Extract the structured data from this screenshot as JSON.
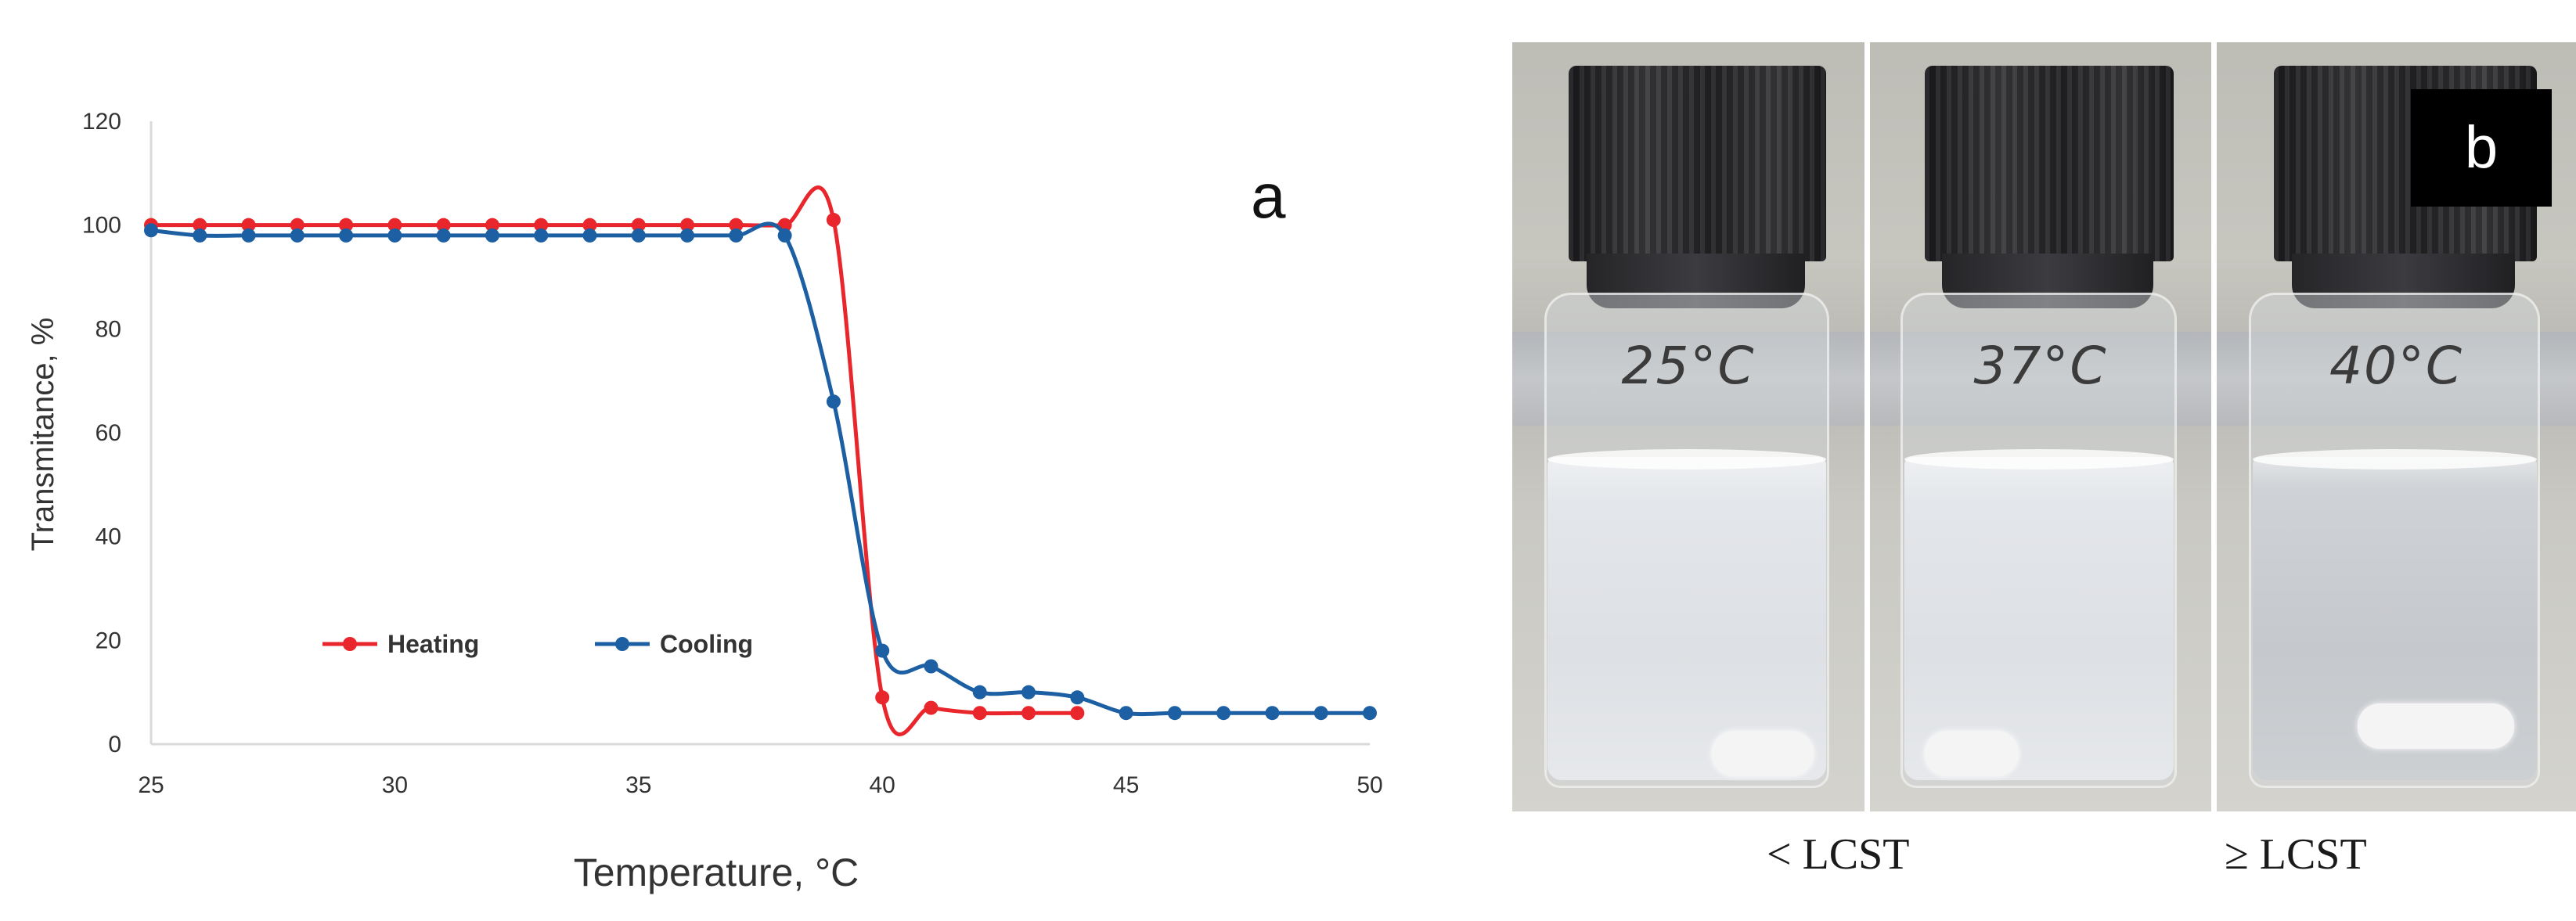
{
  "panel_a_letter": "a",
  "chart_data": {
    "type": "line",
    "xlabel": "Temperature, °C",
    "ylabel": "Transmitance, %",
    "xlim": [
      25,
      50
    ],
    "ylim": [
      0,
      120
    ],
    "xticks": [
      25,
      30,
      35,
      40,
      45,
      50
    ],
    "yticks": [
      0,
      20,
      40,
      60,
      80,
      100,
      120
    ],
    "grid": false,
    "legend": "inside-bottom-left",
    "series": [
      {
        "name": "Heating",
        "color": "#e8262b",
        "x": [
          25,
          26,
          27,
          28,
          29,
          30,
          31,
          32,
          33,
          34,
          35,
          36,
          37,
          38,
          39,
          40,
          41,
          42,
          43,
          44
        ],
        "y": [
          100,
          100,
          100,
          100,
          100,
          100,
          100,
          100,
          100,
          100,
          100,
          100,
          100,
          100,
          101,
          9,
          7,
          6,
          6,
          6
        ]
      },
      {
        "name": "Cooling",
        "color": "#1d5fa3",
        "x": [
          25,
          26,
          27,
          28,
          29,
          30,
          31,
          32,
          33,
          34,
          35,
          36,
          37,
          38,
          39,
          40,
          41,
          42,
          43,
          44,
          45,
          46,
          47,
          48,
          49,
          50
        ],
        "y": [
          99,
          98,
          98,
          98,
          98,
          98,
          98,
          98,
          98,
          98,
          98,
          98,
          98,
          98,
          66,
          18,
          15,
          10,
          10,
          9,
          6,
          6,
          6,
          6,
          6,
          6
        ]
      }
    ]
  },
  "panel_b": {
    "badge": "b",
    "vials": [
      {
        "label": "25°C",
        "state": "cloudy"
      },
      {
        "label": "37°C",
        "state": "cloudy"
      },
      {
        "label": "40°C",
        "state": "clear"
      }
    ],
    "captions": [
      "< LCST",
      "≥ LCST"
    ]
  }
}
